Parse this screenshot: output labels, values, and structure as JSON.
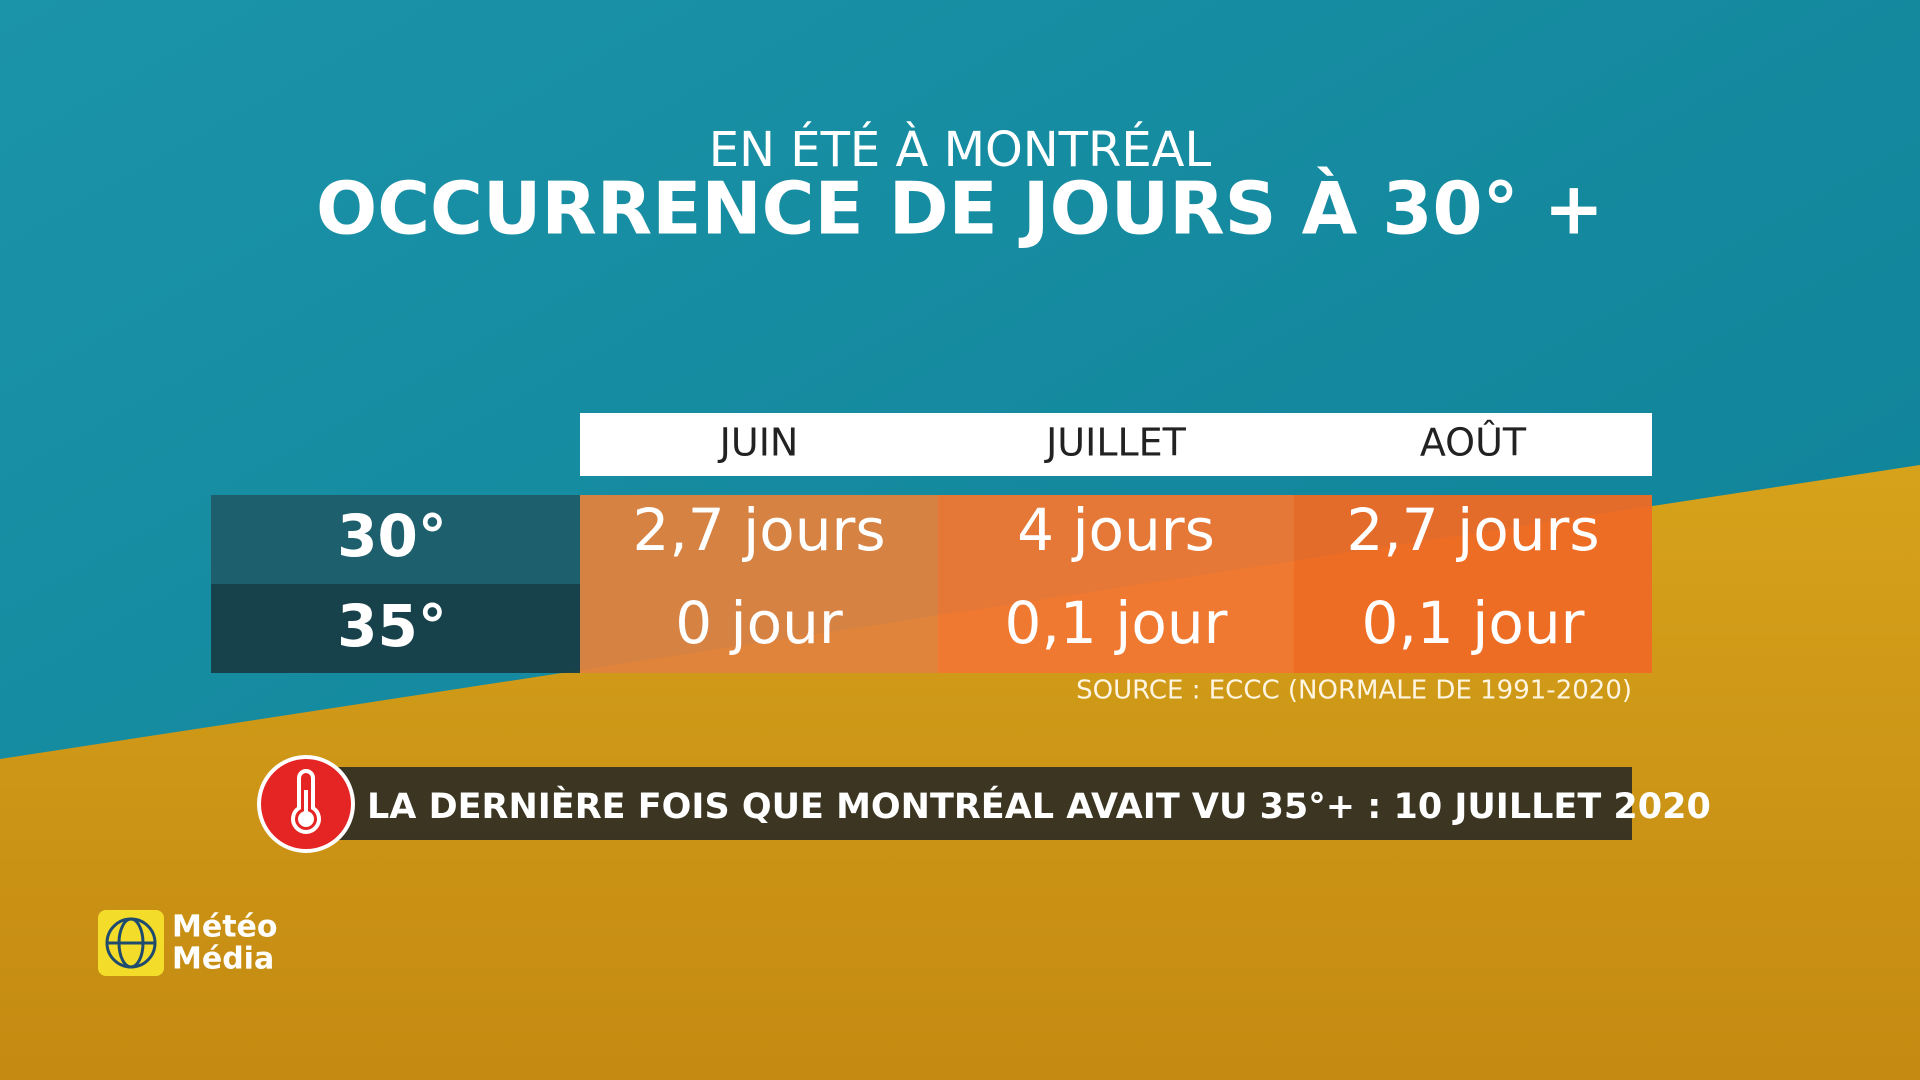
{
  "header": {
    "subtitle": "EN ÉTÉ À MONTRÉAL",
    "title": "OCCURRENCE DE JOURS À 30° +"
  },
  "table": {
    "columns": [
      "JUIN",
      "JUILLET",
      "AOÛT"
    ],
    "rows": [
      {
        "label": "30°",
        "cells": [
          "2,7 jours",
          "4 jours",
          "2,7 jours"
        ]
      },
      {
        "label": "35°",
        "cells": [
          "0 jour",
          "0,1 jour",
          "0,1 jour"
        ]
      }
    ]
  },
  "source": "SOURCE : ECCC (NORMALE DE 1991-2020)",
  "banner": "LA DERNIÈRE FOIS QUE MONTRÉAL AVAIT VU 35°+ : 10 JUILLET 2020",
  "logo": {
    "line1": "Météo",
    "line2": "Média"
  }
}
